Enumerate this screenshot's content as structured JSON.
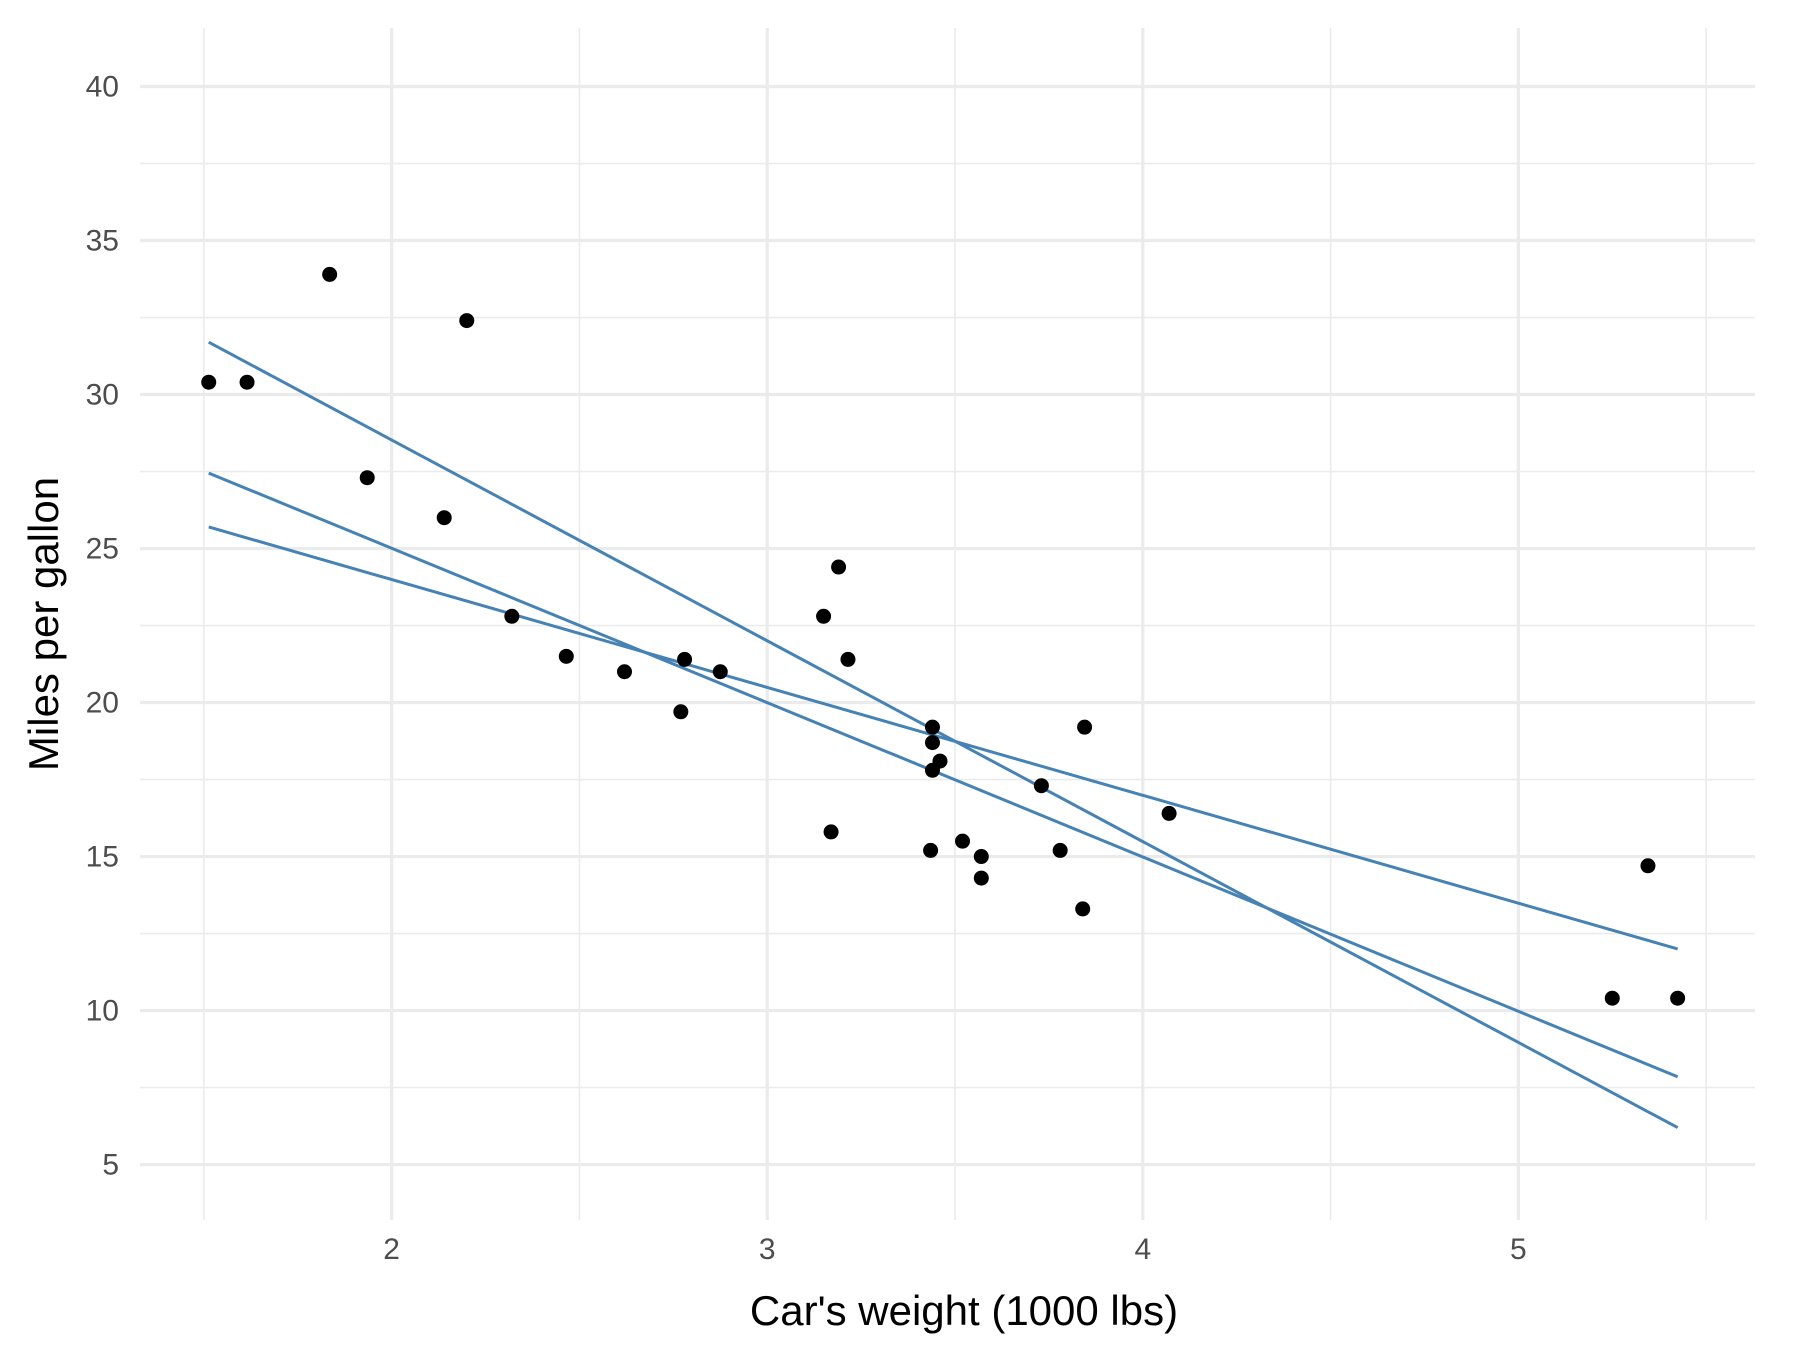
{
  "chart_data": {
    "type": "scatter",
    "title": "",
    "xlabel": "Car's weight (1000 lbs)",
    "ylabel": "Miles per gallon",
    "xlim": [
      1.33,
      5.63
    ],
    "ylim": [
      3.2,
      41.9
    ],
    "x_major_ticks": [
      2,
      3,
      4,
      5
    ],
    "x_minor_ticks": [
      1.5,
      2.5,
      3.5,
      4.5,
      5.5
    ],
    "y_major_ticks": [
      5,
      10,
      15,
      20,
      25,
      30,
      35,
      40
    ],
    "y_minor_ticks": [
      7.5,
      12.5,
      17.5,
      22.5,
      27.5,
      32.5,
      37.5
    ],
    "grid": true,
    "point_color": "#000000",
    "line_color": "#4682b4",
    "points": [
      {
        "x": 1.513,
        "y": 30.4
      },
      {
        "x": 1.615,
        "y": 30.4
      },
      {
        "x": 1.835,
        "y": 33.9
      },
      {
        "x": 1.935,
        "y": 27.3
      },
      {
        "x": 2.14,
        "y": 26.0
      },
      {
        "x": 2.2,
        "y": 32.4
      },
      {
        "x": 2.32,
        "y": 22.8
      },
      {
        "x": 2.465,
        "y": 21.5
      },
      {
        "x": 2.62,
        "y": 21.0
      },
      {
        "x": 2.77,
        "y": 19.7
      },
      {
        "x": 2.78,
        "y": 21.4
      },
      {
        "x": 2.875,
        "y": 21.0
      },
      {
        "x": 3.15,
        "y": 22.8
      },
      {
        "x": 3.17,
        "y": 15.8
      },
      {
        "x": 3.19,
        "y": 24.4
      },
      {
        "x": 3.215,
        "y": 21.4
      },
      {
        "x": 3.435,
        "y": 15.2
      },
      {
        "x": 3.44,
        "y": 18.7
      },
      {
        "x": 3.44,
        "y": 19.2
      },
      {
        "x": 3.44,
        "y": 17.8
      },
      {
        "x": 3.46,
        "y": 18.1
      },
      {
        "x": 3.52,
        "y": 15.5
      },
      {
        "x": 3.57,
        "y": 15.0
      },
      {
        "x": 3.57,
        "y": 14.3
      },
      {
        "x": 3.73,
        "y": 17.3
      },
      {
        "x": 3.78,
        "y": 15.2
      },
      {
        "x": 3.84,
        "y": 13.3
      },
      {
        "x": 3.845,
        "y": 19.2
      },
      {
        "x": 4.07,
        "y": 16.4
      },
      {
        "x": 5.25,
        "y": 10.4
      },
      {
        "x": 5.345,
        "y": 14.7
      },
      {
        "x": 5.424,
        "y": 10.4
      }
    ],
    "lines": [
      {
        "x": [
          1.513,
          5.424
        ],
        "y": [
          31.7,
          6.2
        ]
      },
      {
        "x": [
          1.513,
          5.424
        ],
        "y": [
          27.45,
          7.85
        ]
      },
      {
        "x": [
          1.513,
          5.424
        ],
        "y": [
          25.7,
          12.0
        ]
      }
    ]
  }
}
